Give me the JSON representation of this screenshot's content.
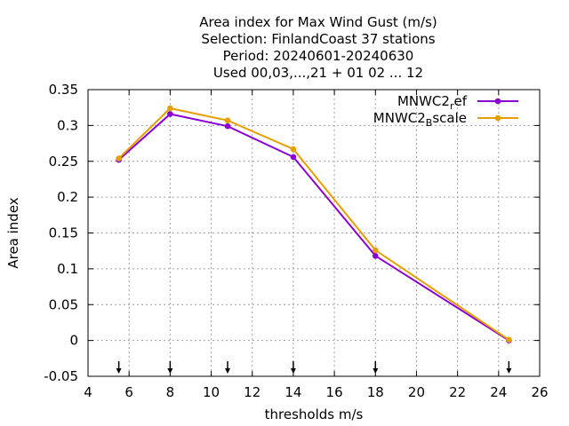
{
  "chart_data": {
    "type": "line",
    "title": [
      "Area index  for Max Wind Gust (m/s)",
      "Selection: FinlandCoast      37 stations",
      "Period: 20240601-20240630",
      "Used 00,03,...,21 + 01 02 ... 12"
    ],
    "xlabel": "thresholds m/s",
    "ylabel": "Area index",
    "xlim": [
      4,
      26
    ],
    "ylim": [
      -0.05,
      0.35
    ],
    "xticks": [
      4,
      6,
      8,
      10,
      12,
      14,
      16,
      18,
      20,
      22,
      24,
      26
    ],
    "xtick_labels": [
      "4",
      "6",
      "8",
      "10",
      "12",
      "14",
      "16",
      "18",
      "20",
      "22",
      "24",
      "26"
    ],
    "yticks": [
      -0.05,
      0,
      0.05,
      0.1,
      0.15,
      0.2,
      0.25,
      0.3,
      0.35
    ],
    "ytick_labels": [
      "-0.05",
      "0",
      "0.05",
      "0.1",
      "0.15",
      "0.2",
      "0.25",
      "0.3",
      "0.35"
    ],
    "grid": true,
    "legend_position": "top-right",
    "series": [
      {
        "name_main": "MNWC2",
        "name_sub": "r",
        "name_rest": "ef",
        "color": "#8a00d4",
        "x": [
          5.5,
          8,
          10.8,
          14,
          18,
          24.5
        ],
        "y": [
          0.252,
          0.316,
          0.299,
          0.256,
          0.118,
          0.0
        ]
      },
      {
        "name_main": "MNWC2",
        "name_sub": "B",
        "name_rest": "scale",
        "color": "#e69f00",
        "x": [
          5.5,
          8,
          10.8,
          14,
          18,
          24.5
        ],
        "y": [
          0.254,
          0.324,
          0.307,
          0.267,
          0.126,
          0.001
        ]
      }
    ],
    "threshold_markers": [
      5.5,
      8,
      10.8,
      14,
      18,
      24.5
    ]
  }
}
